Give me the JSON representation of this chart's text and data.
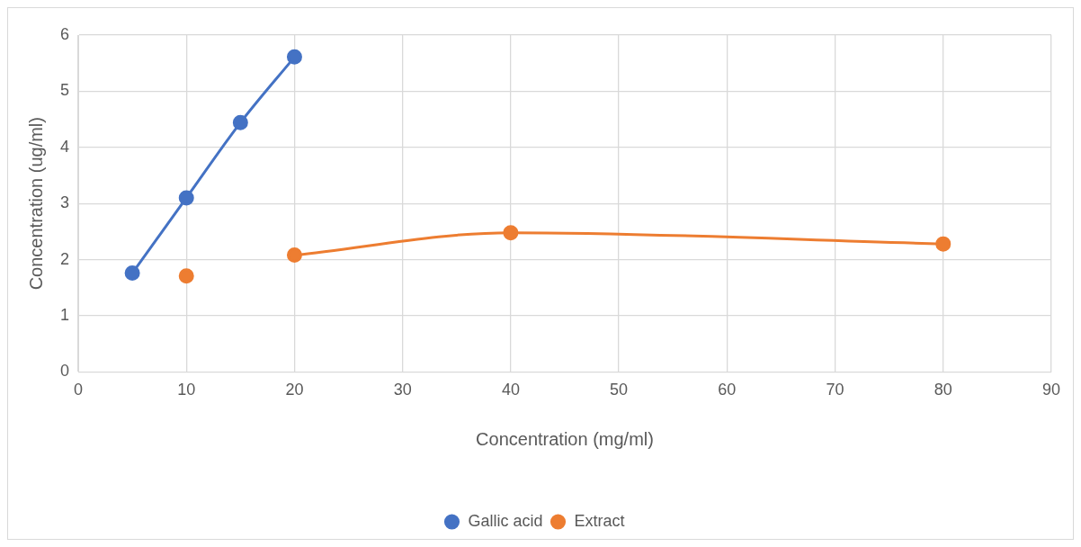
{
  "chart_data": {
    "type": "line",
    "xlabel": "Concentration (mg/ml)",
    "ylabel": "Concentration (ug/ml)",
    "series": [
      {
        "name": "Gallic acid",
        "color": "#4472c4",
        "x": [
          5,
          10,
          15,
          20
        ],
        "values": [
          1.76,
          3.1,
          4.44,
          5.61
        ]
      },
      {
        "name": "Extract",
        "color": "#ed7d31",
        "x": [
          10,
          15,
          20,
          40,
          80
        ],
        "values": [
          1.71,
          null,
          2.08,
          2.48,
          2.28
        ]
      }
    ],
    "xlim": [
      0,
      90
    ],
    "xticks": [
      0,
      10,
      20,
      30,
      40,
      50,
      60,
      70,
      80,
      90
    ],
    "ylim": [
      0,
      6
    ],
    "yticks": [
      0,
      1,
      2,
      3,
      4,
      5,
      6
    ],
    "grid": true,
    "legend": "bottom",
    "marker": "circle",
    "line_style": "solid"
  }
}
